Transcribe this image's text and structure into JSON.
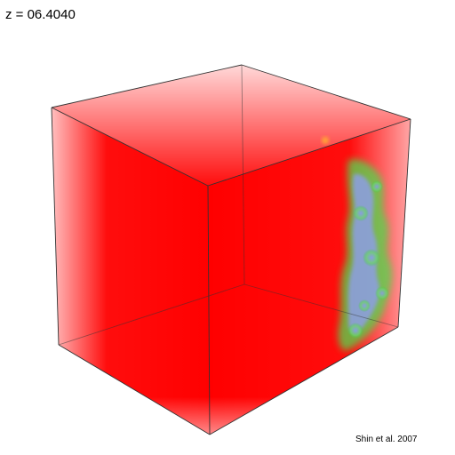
{
  "header": {
    "redshift_label": "z = 06.4040"
  },
  "footer": {
    "credit": "Shin et al. 2007"
  },
  "visual": {
    "subject": "volume-rendered simulation cube",
    "colors": {
      "volume": "#ff0000",
      "edges": "#333333",
      "ionized_front_green": "#5fd85a",
      "ionized_interior_blue": "#7f8fe0"
    }
  }
}
